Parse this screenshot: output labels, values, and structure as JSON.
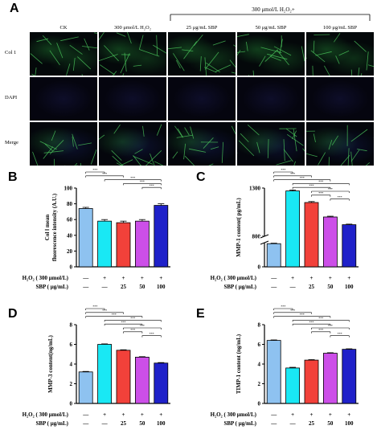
{
  "panel_a": {
    "letter": "A",
    "bracket_label": "300 μmol/L H₂O₂+",
    "columns": [
      "CK",
      "300 μmol/L H₂O₂",
      "25 μg/mL SBP",
      "50 μg/mL SBP",
      "100 μg/mL SBP"
    ],
    "rows": [
      "Col 1",
      "DAPI",
      "Merge"
    ],
    "row_types": [
      "col1",
      "dapi",
      "merge"
    ]
  },
  "treatment": {
    "h2o2_label": "H₂O₂ ( 300 μmol/L)",
    "sbp_label": "SBP ( μg/mL)",
    "h2o2_marks": [
      "—",
      "+",
      "+",
      "+",
      "+"
    ],
    "sbp_marks": [
      "—",
      "—",
      "25",
      "50",
      "100"
    ]
  },
  "sig_label": "***",
  "colors": [
    "#8ec2f0",
    "#19e8f4",
    "#f2413a",
    "#cc4fe8",
    "#1f21c9"
  ],
  "chart_data": [
    {
      "id": "B",
      "type": "bar",
      "ylabel": "Col Ⅰ mean fluorescence intensity (A.U.)",
      "ylim": [
        0,
        100
      ],
      "yticks": [
        0,
        20,
        40,
        60,
        80,
        100
      ],
      "values": [
        74,
        58,
        56,
        58,
        78
      ],
      "errors": [
        1.5,
        2,
        2,
        2,
        2
      ],
      "sig": [
        [
          0,
          1
        ],
        [
          0,
          2
        ],
        [
          1,
          4
        ],
        [
          2,
          4
        ],
        [
          3,
          4
        ]
      ]
    },
    {
      "id": "C",
      "type": "bar",
      "broken_axis": true,
      "ylabel": "MMP-1 content( pg/mL)",
      "ylim": [
        0,
        1300
      ],
      "yticks": [
        0,
        800,
        1300
      ],
      "values": [
        720,
        1270,
        1150,
        1000,
        920
      ],
      "errors": [
        15,
        10,
        10,
        8,
        6
      ],
      "sig": [
        [
          0,
          1
        ],
        [
          0,
          2
        ],
        [
          0,
          3
        ],
        [
          1,
          4
        ],
        [
          1,
          3
        ],
        [
          2,
          4
        ],
        [
          2,
          3
        ],
        [
          3,
          4
        ]
      ]
    },
    {
      "id": "D",
      "type": "bar",
      "ylabel": "MMP-3 content(ng/mL)",
      "ylim": [
        0,
        8
      ],
      "yticks": [
        0,
        2,
        4,
        6,
        8
      ],
      "values": [
        3.2,
        6.0,
        5.4,
        4.7,
        4.1
      ],
      "errors": [
        0.05,
        0.05,
        0.05,
        0.05,
        0.05
      ],
      "sig": [
        [
          0,
          1
        ],
        [
          0,
          2
        ],
        [
          0,
          3
        ],
        [
          1,
          4
        ],
        [
          1,
          3
        ],
        [
          2,
          4
        ],
        [
          2,
          3
        ],
        [
          3,
          4
        ]
      ]
    },
    {
      "id": "E",
      "type": "bar",
      "ylabel": "TIMP-1 content (ng/mL)",
      "ylim": [
        0,
        8
      ],
      "yticks": [
        0,
        2,
        4,
        6,
        8
      ],
      "values": [
        6.4,
        3.6,
        4.4,
        5.1,
        5.5
      ],
      "errors": [
        0.05,
        0.07,
        0.05,
        0.05,
        0.05
      ],
      "sig": [
        [
          0,
          1
        ],
        [
          0,
          2
        ],
        [
          0,
          3
        ],
        [
          1,
          4
        ],
        [
          1,
          3
        ],
        [
          2,
          4
        ],
        [
          2,
          3
        ],
        [
          3,
          4
        ]
      ]
    }
  ]
}
